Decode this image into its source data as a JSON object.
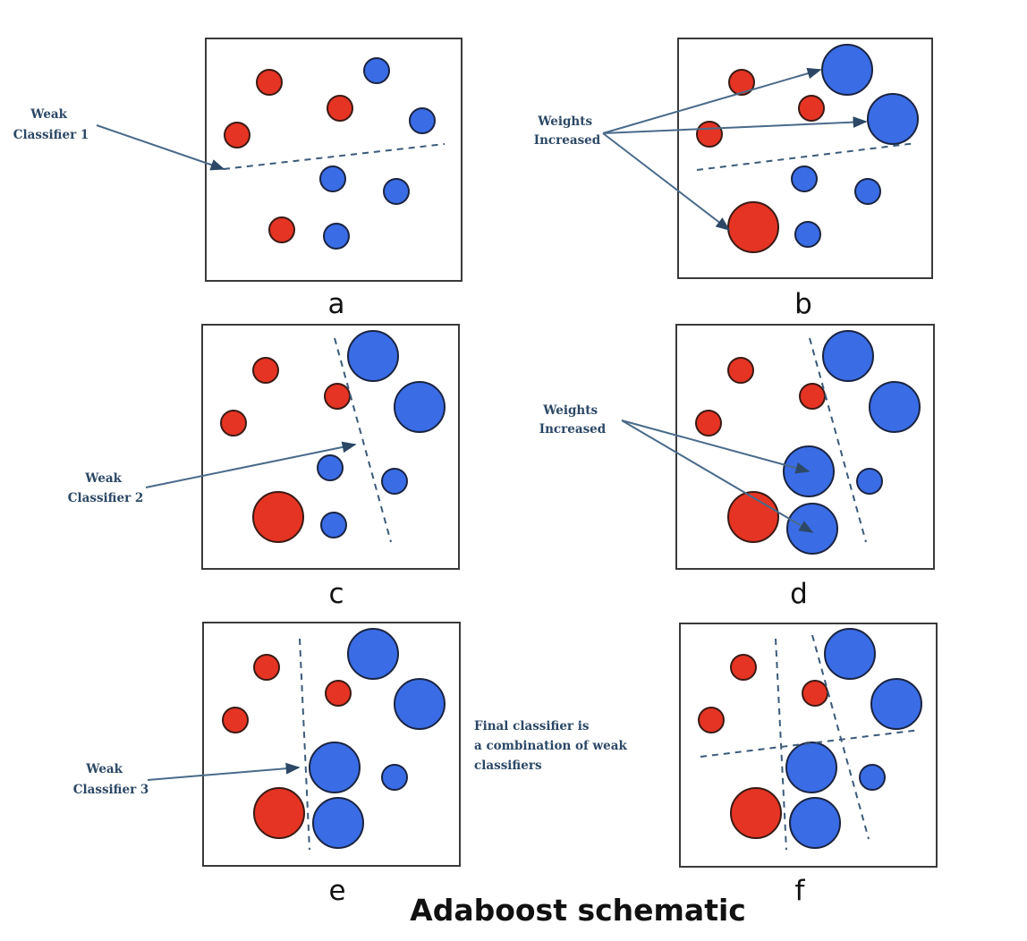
{
  "title": "Adaboost schematic",
  "colors": {
    "positive": "#e53424",
    "negative": "#3a6ce6",
    "annotation": "#2c4866"
  },
  "panels": [
    {
      "label": "a",
      "annotation": [
        "Weak",
        "Classifier 1"
      ]
    },
    {
      "label": "b",
      "annotation": [
        "Weights",
        "Increased"
      ]
    },
    {
      "label": "c",
      "annotation": [
        "Weak",
        "Classifier 2"
      ]
    },
    {
      "label": "d",
      "annotation": [
        "Weights",
        "Increased"
      ]
    },
    {
      "label": "e",
      "annotation": [
        "Weak",
        "Classifier 3"
      ]
    },
    {
      "label": "f",
      "annotation": [
        "Final classifier is",
        "a combination of weak",
        "classifiers"
      ]
    }
  ]
}
